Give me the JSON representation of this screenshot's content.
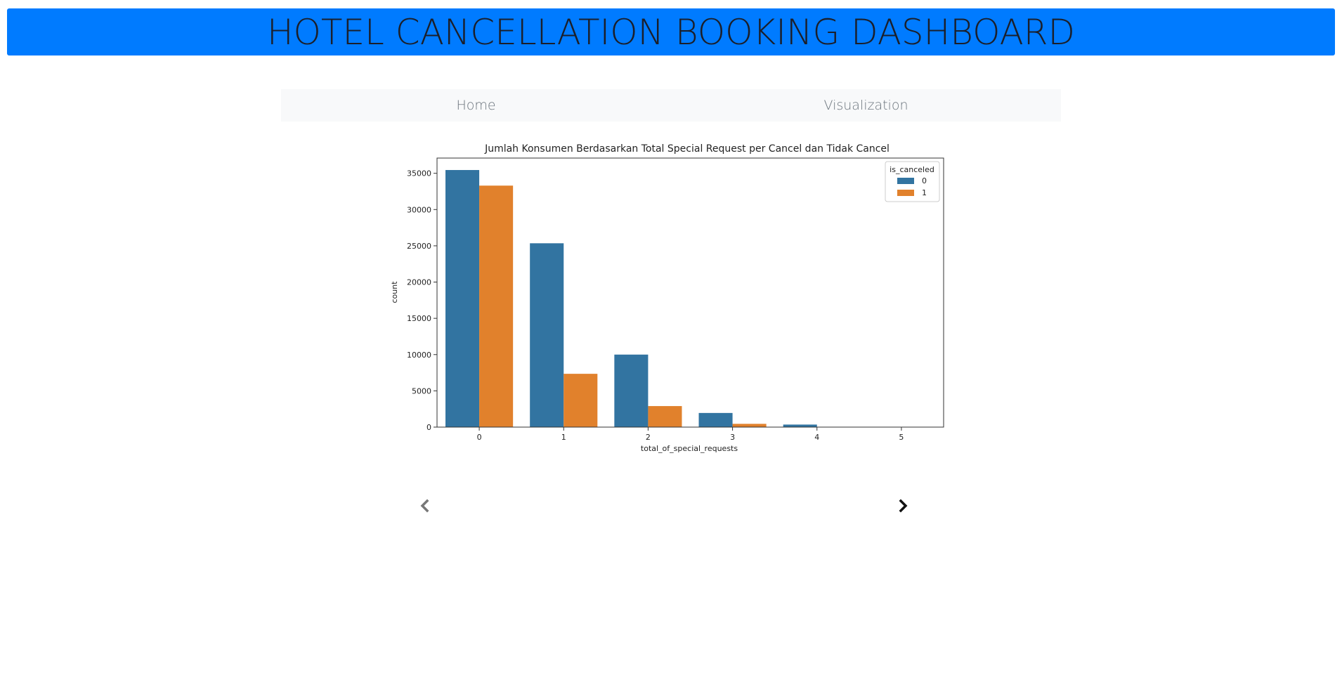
{
  "header": {
    "title": "HOTEL CANCELLATION BOOKING DASHBOARD"
  },
  "nav": {
    "items": [
      {
        "label": "Home"
      },
      {
        "label": "Visualization"
      }
    ]
  },
  "carousel": {
    "prev_icon": "chevron-left-icon",
    "next_icon": "chevron-right-icon"
  },
  "colors": {
    "header_bg": "#007bff",
    "series0": "#3274a1",
    "series1": "#e1812c"
  },
  "chart_data": {
    "type": "bar",
    "title": "Jumlah Konsumen Berdasarkan Total Special Request per Cancel dan Tidak Cancel",
    "xlabel": "total_of_special_requests",
    "ylabel": "count",
    "categories": [
      "0",
      "1",
      "2",
      "3",
      "4",
      "5"
    ],
    "yticks": [
      "0",
      "5000",
      "10000",
      "15000",
      "20000",
      "25000",
      "30000",
      "35000"
    ],
    "ylim": [
      0,
      37100
    ],
    "legend_title": "is_canceled",
    "legend_position": "top-right",
    "grid": false,
    "series": [
      {
        "name": "0",
        "color": "#3274a1",
        "values": [
          35450,
          25350,
          10000,
          1950,
          350,
          40
        ]
      },
      {
        "name": "1",
        "color": "#e1812c",
        "values": [
          33300,
          7350,
          2900,
          450,
          30,
          0
        ]
      }
    ]
  }
}
